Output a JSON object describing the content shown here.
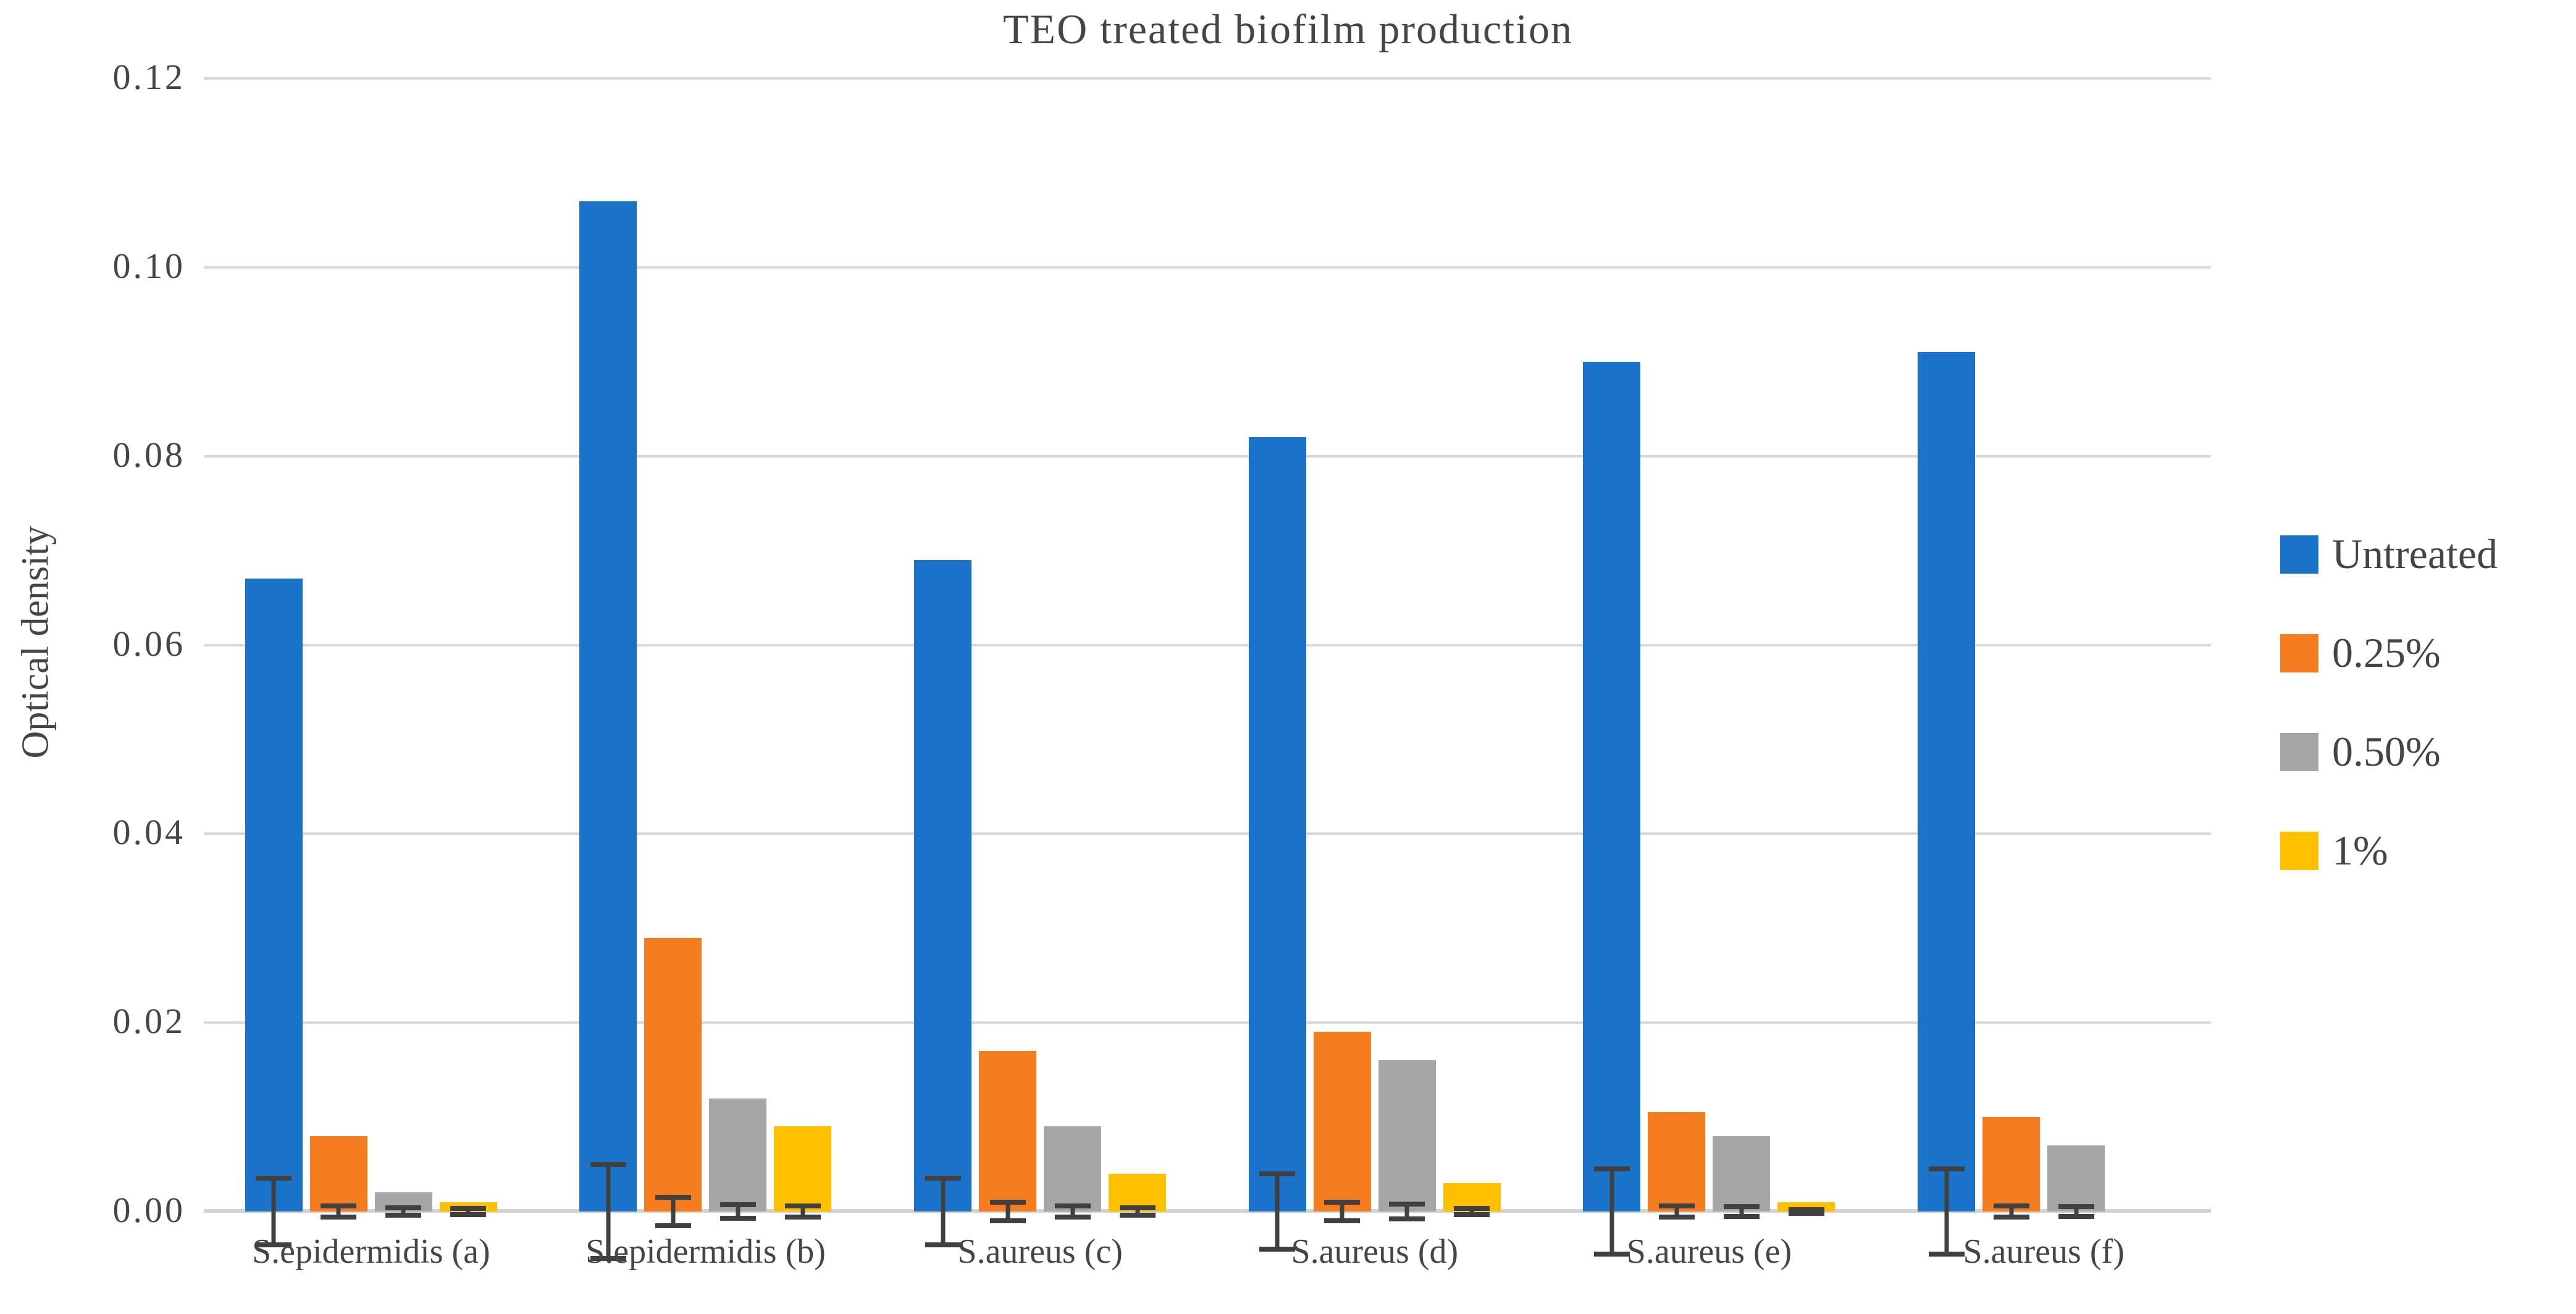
{
  "chart_data": {
    "type": "bar",
    "title": "TEO treated biofilm production",
    "ylabel": "Optical density",
    "xlabel": "",
    "ylim": [
      0,
      0.12
    ],
    "ytick_labels": [
      "0.00",
      "0.02",
      "0.04",
      "0.06",
      "0.08",
      "0.10",
      "0.12"
    ],
    "grid": true,
    "legend_position": "right",
    "error_bars": true,
    "error_bar_color": "#404040",
    "gridline_color": "#d9d9d9",
    "text_color": "#454545",
    "categories": [
      "S.epidermidis (a)",
      "S.epidermidis (b)",
      "S.aureus (c)",
      "S.aureus (d)",
      "S.aureus (e)",
      "S.aureus (f)"
    ],
    "series": [
      {
        "name": "Untreated",
        "color": "#1A73C8",
        "values": [
          0.067,
          0.107,
          0.069,
          0.082,
          0.09,
          0.091
        ],
        "errors": [
          0.0035,
          0.005,
          0.0035,
          0.004,
          0.0045,
          0.0045
        ]
      },
      {
        "name": "0.25%",
        "color": "#F57D20",
        "values": [
          0.008,
          0.029,
          0.017,
          0.019,
          0.0105,
          0.01
        ],
        "errors": [
          0.0006,
          0.0015,
          0.001,
          0.001,
          0.0006,
          0.0006
        ]
      },
      {
        "name": "0.50%",
        "color": "#A6A6A6",
        "values": [
          0.002,
          0.012,
          0.009,
          0.016,
          0.008,
          0.007
        ],
        "errors": [
          0.0004,
          0.0007,
          0.0006,
          0.0008,
          0.0005,
          0.0005
        ]
      },
      {
        "name": "1%",
        "color": "#FFC000",
        "values": [
          0.001,
          0.009,
          0.004,
          0.003,
          0.001,
          0
        ],
        "errors": [
          0.0003,
          0.0006,
          0.0004,
          0.0003,
          0.0002,
          0
        ]
      }
    ]
  }
}
